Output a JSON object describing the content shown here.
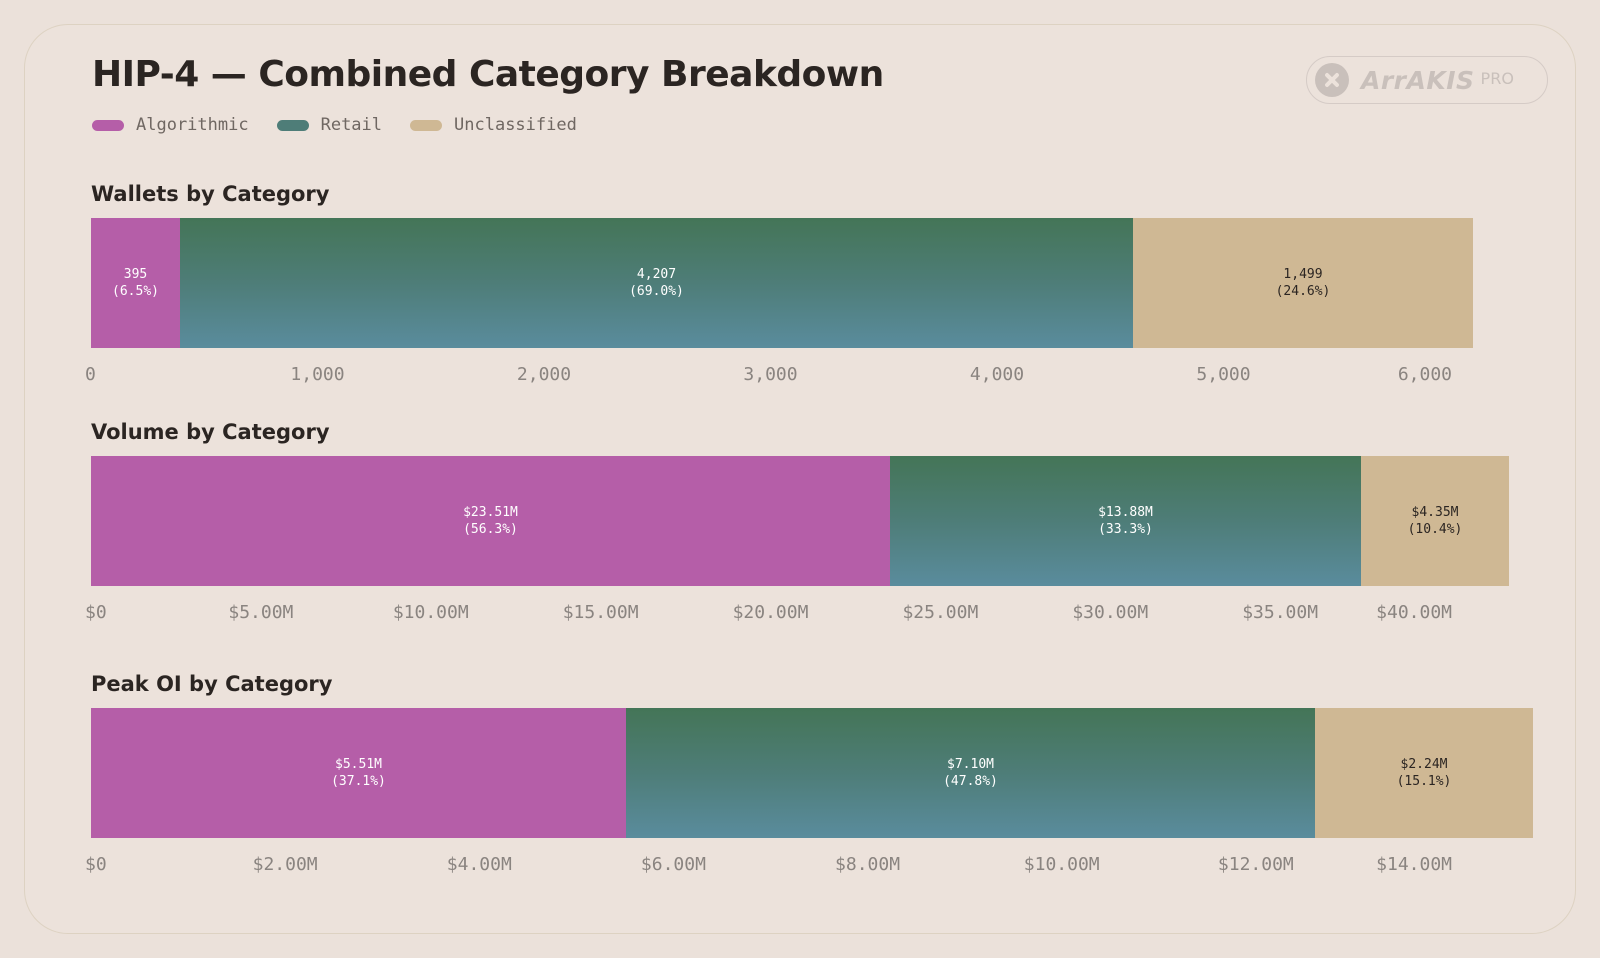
{
  "title": "HIP-4 — Combined Category Breakdown",
  "legend": [
    {
      "label": "Algorithmic",
      "color": "#b55ea8"
    },
    {
      "label": "Retail",
      "color": "#4e7d78"
    },
    {
      "label": "Unclassified",
      "color": "#cfb894"
    }
  ],
  "logo": {
    "wordmark": "ArrAKIS",
    "badge": "PRO",
    "icon": "x-circle-icon"
  },
  "chart_data": [
    {
      "type": "bar",
      "stacked": true,
      "orientation": "horizontal",
      "title": "Wallets by Category",
      "xlim": [
        0,
        6000
      ],
      "ticks": [
        "0",
        "1,000",
        "2,000",
        "3,000",
        "4,000",
        "5,000",
        "6,000"
      ],
      "series": [
        {
          "name": "Algorithmic",
          "value": 395,
          "label": "395",
          "pct": "(6.5%)"
        },
        {
          "name": "Retail",
          "value": 4207,
          "label": "4,207",
          "pct": "(69.0%)"
        },
        {
          "name": "Unclassified",
          "value": 1499,
          "label": "1,499",
          "pct": "(24.6%)"
        }
      ]
    },
    {
      "type": "bar",
      "stacked": true,
      "orientation": "horizontal",
      "title": "Volume by Category",
      "xlim": [
        0,
        40000000
      ],
      "ticks": [
        "$0",
        "$5.00M",
        "$10.00M",
        "$15.00M",
        "$20.00M",
        "$25.00M",
        "$30.00M",
        "$35.00M",
        "$40.00M"
      ],
      "series": [
        {
          "name": "Algorithmic",
          "value": 23510000,
          "label": "$23.51M",
          "pct": "(56.3%)"
        },
        {
          "name": "Retail",
          "value": 13880000,
          "label": "$13.88M",
          "pct": "(33.3%)"
        },
        {
          "name": "Unclassified",
          "value": 4350000,
          "label": "$4.35M",
          "pct": "(10.4%)"
        }
      ]
    },
    {
      "type": "bar",
      "stacked": true,
      "orientation": "horizontal",
      "title": "Peak OI by Category",
      "xlim": [
        0,
        14000000
      ],
      "ticks": [
        "$0",
        "$2.00M",
        "$4.00M",
        "$6.00M",
        "$8.00M",
        "$10.00M",
        "$12.00M",
        "$14.00M"
      ],
      "series": [
        {
          "name": "Algorithmic",
          "value": 5510000,
          "label": "$5.51M",
          "pct": "(37.1%)"
        },
        {
          "name": "Retail",
          "value": 7100000,
          "label": "$7.10M",
          "pct": "(47.8%)"
        },
        {
          "name": "Unclassified",
          "value": 2240000,
          "label": "$2.24M",
          "pct": "(15.1%)"
        }
      ]
    }
  ]
}
